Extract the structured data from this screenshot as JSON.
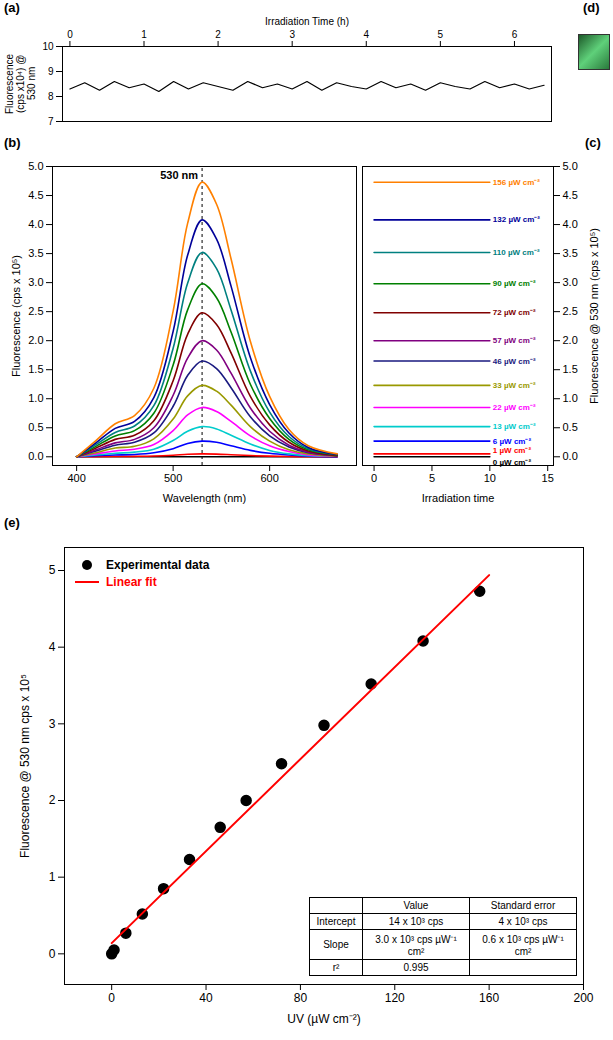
{
  "chart_data": [
    {
      "panel": "(a)",
      "type": "line",
      "xlabel": "Irradiation Time (h)",
      "ylabel": "Fluorescence (cps x10⁴) @ 530 nm",
      "x": [
        0,
        0.2,
        0.4,
        0.6,
        0.8,
        1,
        1.2,
        1.4,
        1.6,
        1.8,
        2,
        2.2,
        2.4,
        2.6,
        2.8,
        3,
        3.2,
        3.4,
        3.6,
        3.8,
        4,
        4.2,
        4.4,
        4.6,
        4.8,
        5,
        5.2,
        5.4,
        5.6,
        5.8,
        6,
        6.2,
        6.4
      ],
      "series": [
        {
          "color": "#000000",
          "values": [
            8.3,
            8.55,
            8.25,
            8.6,
            8.35,
            8.5,
            8.2,
            8.6,
            8.3,
            8.55,
            8.4,
            8.25,
            8.6,
            8.35,
            8.5,
            8.3,
            8.6,
            8.25,
            8.55,
            8.4,
            8.3,
            8.6,
            8.35,
            8.5,
            8.25,
            8.55,
            8.4,
            8.3,
            8.6,
            8.35,
            8.5,
            8.3,
            8.45
          ]
        }
      ],
      "xlim": [
        -0.1,
        6.5
      ],
      "xticks": [
        0,
        1,
        2,
        3,
        4,
        5,
        6
      ],
      "ylim": [
        7,
        10
      ],
      "yticks": [
        7,
        8,
        9,
        10
      ]
    },
    {
      "panel": "(d)",
      "type": "image"
    },
    {
      "panel": "(b)",
      "type": "line",
      "xlabel": "Wavelength (nm)",
      "ylabel": "Fluorescence (cps x 10⁵)",
      "annotation": {
        "text": "530 nm",
        "x": 530
      },
      "x": [
        400,
        420,
        440,
        460,
        480,
        500,
        515,
        530,
        545,
        560,
        580,
        600,
        620,
        640,
        670
      ],
      "series": [
        {
          "color": "#000000",
          "values": [
            0,
            0,
            0,
            0,
            0,
            0,
            0,
            0,
            0,
            0,
            0,
            0,
            0,
            0,
            0
          ]
        },
        {
          "color": "#ff0000",
          "values": [
            0,
            0.003,
            0.006,
            0.008,
            0.013,
            0.027,
            0.043,
            0.05,
            0.046,
            0.036,
            0.021,
            0.011,
            0.005,
            0.002,
            0.001
          ]
        },
        {
          "color": "#0000ff",
          "values": [
            0,
            0.02,
            0.03,
            0.04,
            0.07,
            0.14,
            0.23,
            0.27,
            0.25,
            0.19,
            0.11,
            0.06,
            0.03,
            0.01,
            0
          ]
        },
        {
          "color": "#00cccc",
          "values": [
            0,
            0.03,
            0.06,
            0.08,
            0.13,
            0.28,
            0.44,
            0.52,
            0.48,
            0.37,
            0.22,
            0.11,
            0.05,
            0.02,
            0.01
          ]
        },
        {
          "color": "#ff00ff",
          "values": [
            0,
            0.05,
            0.1,
            0.13,
            0.21,
            0.45,
            0.72,
            0.85,
            0.78,
            0.61,
            0.36,
            0.19,
            0.09,
            0.03,
            0.01
          ]
        },
        {
          "color": "#999900",
          "values": [
            0,
            0.07,
            0.15,
            0.18,
            0.31,
            0.65,
            1.05,
            1.23,
            1.13,
            0.89,
            0.52,
            0.27,
            0.12,
            0.05,
            0.01
          ]
        },
        {
          "color": "#1a1a80",
          "values": [
            0,
            0.1,
            0.2,
            0.25,
            0.41,
            0.87,
            1.4,
            1.65,
            1.52,
            1.19,
            0.69,
            0.36,
            0.17,
            0.07,
            0.02
          ]
        },
        {
          "color": "#800080",
          "values": [
            0,
            0.12,
            0.24,
            0.3,
            0.5,
            1.06,
            1.7,
            2.0,
            1.84,
            1.44,
            0.84,
            0.44,
            0.2,
            0.08,
            0.02
          ]
        },
        {
          "color": "#800000",
          "values": [
            0,
            0.15,
            0.3,
            0.37,
            0.62,
            1.31,
            2.11,
            2.48,
            2.28,
            1.79,
            1.04,
            0.55,
            0.25,
            0.1,
            0.02
          ]
        },
        {
          "color": "#008000",
          "values": [
            0,
            0.18,
            0.36,
            0.45,
            0.75,
            1.58,
            2.53,
            2.98,
            2.74,
            2.15,
            1.25,
            0.66,
            0.3,
            0.12,
            0.03
          ]
        },
        {
          "color": "#008080",
          "values": [
            0,
            0.21,
            0.42,
            0.53,
            0.88,
            1.87,
            2.99,
            3.52,
            3.24,
            2.53,
            1.48,
            0.77,
            0.35,
            0.14,
            0.04
          ]
        },
        {
          "color": "#000099",
          "values": [
            0,
            0.24,
            0.49,
            0.61,
            1.02,
            2.16,
            3.47,
            4.08,
            3.75,
            2.94,
            1.71,
            0.9,
            0.41,
            0.16,
            0.04
          ]
        },
        {
          "color": "#ff8000",
          "values": [
            0,
            0.28,
            0.57,
            0.71,
            1.18,
            2.51,
            4.02,
            4.73,
            4.35,
            3.41,
            1.99,
            1.04,
            0.47,
            0.19,
            0.05
          ]
        }
      ],
      "xlim": [
        375,
        690
      ],
      "xticks": [
        400,
        500,
        600
      ],
      "ylim": [
        -0.15,
        5
      ],
      "yticks": [
        {
          "value": 0,
          "label": "0.0"
        },
        0.5,
        {
          "value": 1,
          "label": "1.0"
        },
        1.5,
        {
          "value": 2,
          "label": "2.0"
        },
        2.5,
        {
          "value": 3,
          "label": "3.0"
        },
        3.5,
        {
          "value": 4,
          "label": "4.0"
        },
        4.5,
        {
          "value": 5,
          "label": "5.0"
        }
      ]
    },
    {
      "panel": "(c)",
      "type": "line",
      "xlabel": "Irradiation time",
      "ylabel": "Fluorescence @ 530 nm (cps x 10⁵)",
      "x": [
        0,
        10
      ],
      "series": [
        {
          "name": "0 µW cm⁻²",
          "color": "#000000",
          "values": [
            0,
            0
          ]
        },
        {
          "name": "1 µW cm⁻²",
          "color": "#ff0000",
          "values": [
            0.05,
            0.05
          ]
        },
        {
          "name": "6 µW cm⁻²",
          "color": "#0000ff",
          "values": [
            0.27,
            0.27
          ]
        },
        {
          "name": "13 µW cm⁻²",
          "color": "#00cccc",
          "values": [
            0.52,
            0.52
          ]
        },
        {
          "name": "22 µW cm⁻²",
          "color": "#ff00ff",
          "values": [
            0.85,
            0.85
          ]
        },
        {
          "name": "33 µW cm⁻²",
          "color": "#999900",
          "values": [
            1.23,
            1.23
          ]
        },
        {
          "name": "46 µW cm⁻²",
          "color": "#1a1a80",
          "values": [
            1.65,
            1.65
          ]
        },
        {
          "name": "57 µW cm⁻²",
          "color": "#800080",
          "values": [
            2.0,
            2.0
          ]
        },
        {
          "name": "72 µW cm⁻²",
          "color": "#800000",
          "values": [
            2.48,
            2.48
          ]
        },
        {
          "name": "90 µW cm⁻²",
          "color": "#008000",
          "values": [
            2.98,
            2.98
          ]
        },
        {
          "name": "110 µW cm⁻²",
          "color": "#008080",
          "values": [
            3.52,
            3.52
          ]
        },
        {
          "name": "132 µW cm⁻²",
          "color": "#000099",
          "values": [
            4.08,
            4.08
          ]
        },
        {
          "name": "156 µW cm⁻²",
          "color": "#ff8000",
          "values": [
            4.73,
            4.73
          ]
        }
      ],
      "xlim": [
        -1,
        15.5
      ],
      "xticks": [
        0,
        5,
        10,
        15
      ],
      "ylim": [
        -0.15,
        5
      ],
      "yticks": [
        {
          "value": 0,
          "label": "0.0"
        },
        0.5,
        {
          "value": 1,
          "label": "1.0"
        },
        1.5,
        {
          "value": 2,
          "label": "2.0"
        },
        2.5,
        {
          "value": 3,
          "label": "3.0"
        },
        3.5,
        {
          "value": 4,
          "label": "4.0"
        },
        4.5,
        {
          "value": 5,
          "label": "5.0"
        }
      ]
    },
    {
      "panel": "(e)",
      "type": "scatter",
      "xlabel": "UV (µW cm⁻²)",
      "ylabel": "Fluorescence @ 530 nm cps x 10⁵",
      "legend": "top-left",
      "series": [
        {
          "name": "Experimental data",
          "type": "scatter",
          "marker": "circle",
          "color": "#000000",
          "x": [
            0,
            1,
            6,
            13,
            22,
            33,
            46,
            57,
            72,
            90,
            110,
            132,
            156
          ],
          "values": [
            0.0,
            0.05,
            0.27,
            0.52,
            0.85,
            1.23,
            1.65,
            2.0,
            2.48,
            2.98,
            3.52,
            4.08,
            4.73
          ]
        },
        {
          "name": "Linear fit",
          "type": "line",
          "color": "#ff0000",
          "x": [
            0,
            160
          ],
          "values": [
            0.14,
            4.94
          ]
        }
      ],
      "xlim": [
        -20,
        200
      ],
      "xticks": [
        0,
        40,
        80,
        120,
        160,
        200
      ],
      "ylim": [
        -0.4,
        5.3
      ],
      "yticks": [
        0,
        1,
        2,
        3,
        4,
        5
      ],
      "table": {
        "columns": [
          "Value",
          "Standard error"
        ],
        "rows": [
          {
            "label": "Intercept",
            "cells": [
              "14 x 10³ cps",
              "4 x 10³ cps"
            ]
          },
          {
            "label": "Slope",
            "cells": [
              "3.0 x 10³ cps µW⁻¹ cm²",
              "0.6 x 10³ cps µW⁻¹ cm²"
            ]
          },
          {
            "label": "r²",
            "cells": [
              "0.995"
            ]
          }
        ]
      }
    }
  ]
}
